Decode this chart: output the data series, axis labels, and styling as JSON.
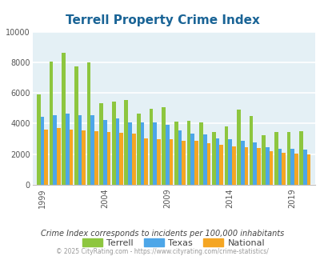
{
  "title": "Terrell Property Crime Index",
  "title_color": "#1a6496",
  "subtitle": "Crime Index corresponds to incidents per 100,000 inhabitants",
  "footer": "© 2025 CityRating.com - https://www.cityrating.com/crime-statistics/",
  "years": [
    1999,
    2000,
    2001,
    2002,
    2003,
    2004,
    2005,
    2006,
    2007,
    2008,
    2009,
    2010,
    2011,
    2012,
    2013,
    2014,
    2015,
    2016,
    2017,
    2018,
    2019,
    2020
  ],
  "terrell": [
    5900,
    8050,
    8600,
    7750,
    8000,
    5350,
    5450,
    5550,
    4650,
    4950,
    5050,
    4150,
    4200,
    4050,
    3450,
    3800,
    4900,
    4500,
    3250,
    3450,
    3450,
    3500
  ],
  "texas": [
    4450,
    4550,
    4650,
    4550,
    4550,
    4250,
    4350,
    4100,
    4050,
    4050,
    3900,
    3550,
    3350,
    3300,
    3050,
    3000,
    2850,
    2750,
    2450,
    2350,
    2350,
    2300
  ],
  "national": [
    3600,
    3700,
    3600,
    3550,
    3500,
    3450,
    3400,
    3320,
    3050,
    3000,
    2970,
    2870,
    2850,
    2700,
    2600,
    2500,
    2450,
    2400,
    2200,
    2100,
    2050,
    2000
  ],
  "xtick_year_labels": [
    "1999",
    "2004",
    "2009",
    "2014",
    "2019"
  ],
  "xtick_year_positions": [
    0,
    5,
    10,
    15,
    20
  ],
  "ylim": [
    0,
    10000
  ],
  "yticks": [
    0,
    2000,
    4000,
    6000,
    8000,
    10000
  ],
  "bar_width": 0.3,
  "color_terrell": "#8dc63f",
  "color_texas": "#4da6e8",
  "color_national": "#f5a623",
  "bg_color": "#e4f0f5",
  "grid_color": "#ffffff",
  "legend_labels": [
    "Terrell",
    "Texas",
    "National"
  ],
  "subtitle_color": "#444444",
  "footer_color": "#999999"
}
